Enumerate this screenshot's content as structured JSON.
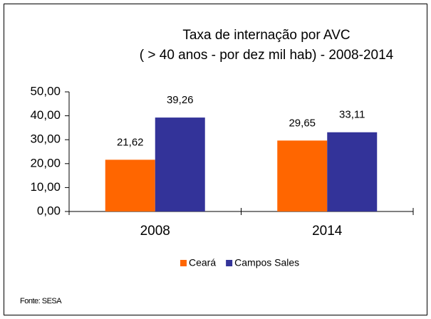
{
  "chart_data": {
    "type": "bar",
    "title": [
      "Taxa de internação por AVC",
      "( > 40 anos - por dez mil hab) - 2008-2014"
    ],
    "categories": [
      "2008",
      "2014"
    ],
    "series": [
      {
        "name": "Ceará",
        "color": "#ff6600",
        "values": [
          21.62,
          29.65
        ],
        "value_labels": [
          "21,62",
          "29,65"
        ]
      },
      {
        "name": "Campos Sales",
        "color": "#333399",
        "values": [
          39.26,
          33.11
        ],
        "value_labels": [
          "39,26",
          "33,11"
        ]
      }
    ],
    "ylim": [
      0,
      50
    ],
    "yticks": [
      {
        "value": 0,
        "label": "0,00"
      },
      {
        "value": 10,
        "label": "10,00"
      },
      {
        "value": 20,
        "label": "20,00"
      },
      {
        "value": 30,
        "label": "30,00"
      },
      {
        "value": 40,
        "label": "40,00"
      },
      {
        "value": 50,
        "label": "50,00"
      }
    ],
    "grid": false,
    "legend": "bottom",
    "source": "Fonte: SESA"
  }
}
